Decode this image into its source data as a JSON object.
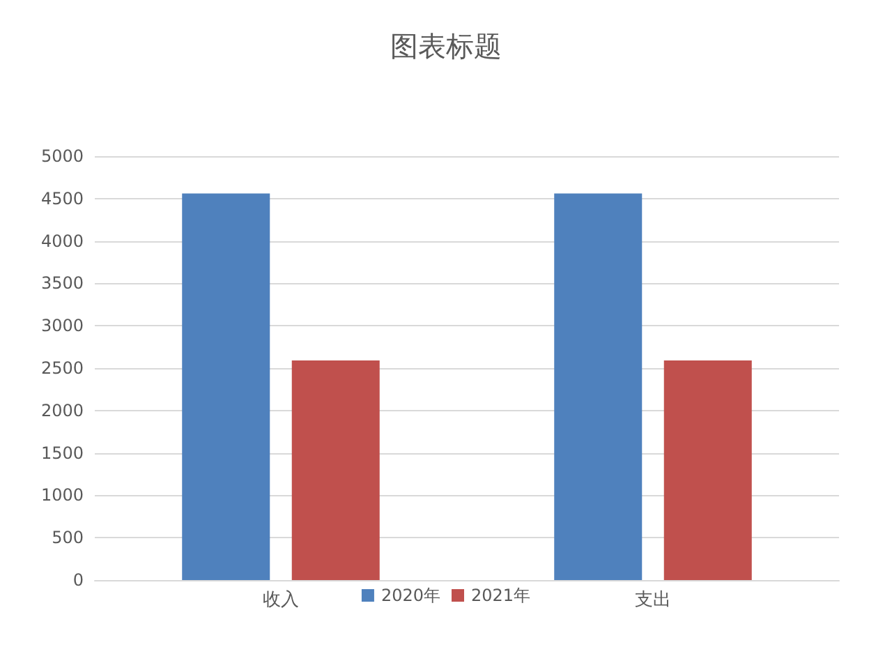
{
  "chart_data": {
    "type": "bar",
    "title": "图表标题",
    "categories": [
      "收入",
      "支出"
    ],
    "series": [
      {
        "name": "2020年",
        "color": "#4f81bd",
        "values": [
          4560,
          4560
        ]
      },
      {
        "name": "2021年",
        "color": "#c0504d",
        "values": [
          2590,
          2590
        ]
      }
    ],
    "ylim": [
      0,
      5000
    ],
    "yticks": [
      0,
      500,
      1000,
      1500,
      2000,
      2500,
      3000,
      3500,
      4000,
      4500,
      5000
    ],
    "grid": "y",
    "legend": "bottom"
  }
}
